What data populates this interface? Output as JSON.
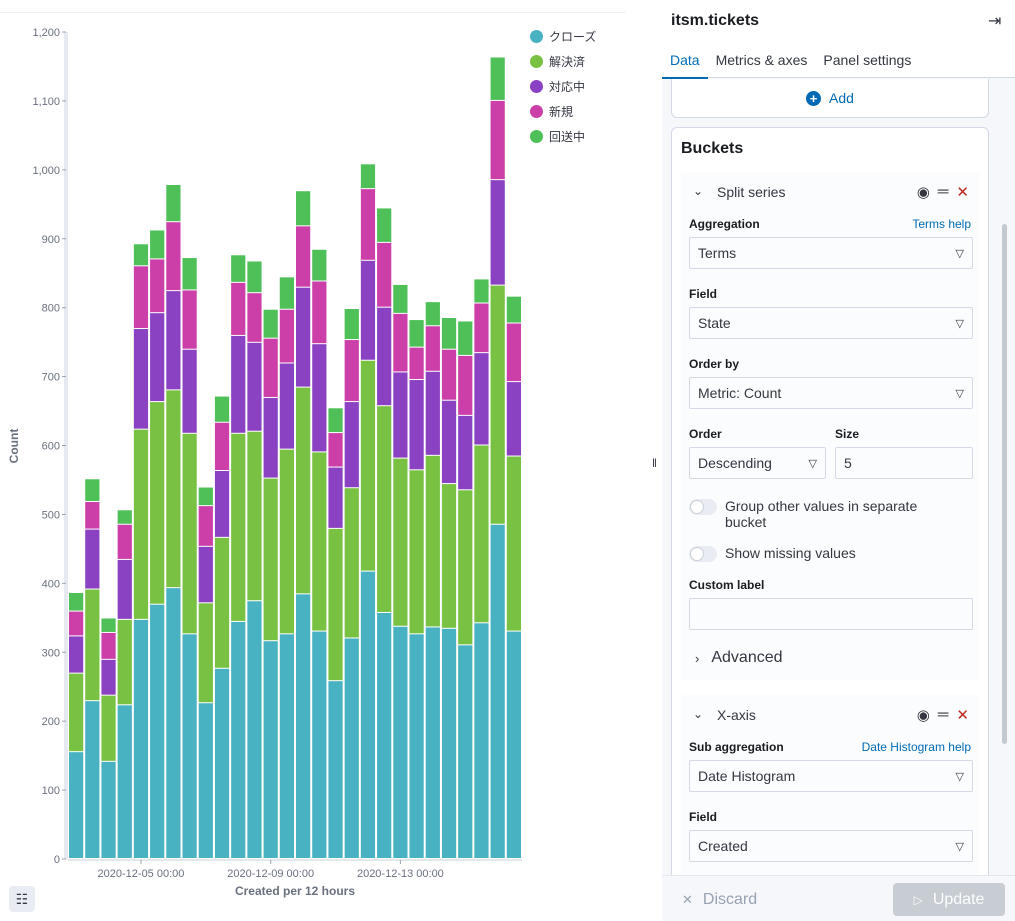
{
  "chart_data": {
    "type": "bar",
    "stacked": true,
    "xlabel": "Created per 12 hours",
    "ylabel": "Count",
    "ylim": [
      0,
      1200
    ],
    "yticks": [
      0,
      100,
      200,
      300,
      400,
      500,
      600,
      700,
      800,
      900,
      1000,
      "1,100",
      "1,200"
    ],
    "x_tick_labels": [
      {
        "index": 4.5,
        "label": "2020-12-05 00:00"
      },
      {
        "index": 12.5,
        "label": "2020-12-09 00:00"
      },
      {
        "index": 20.5,
        "label": "2020-12-13 00:00"
      }
    ],
    "legend_position": "top-right",
    "series": [
      {
        "name": "クローズ",
        "color": "#48b1c2",
        "values": [
          155,
          229,
          141,
          223,
          347,
          369,
          393,
          326,
          226,
          276,
          344,
          374,
          316,
          326,
          384,
          330,
          258,
          320,
          417,
          357,
          337,
          326,
          336,
          334,
          310,
          342,
          485,
          330
        ]
      },
      {
        "name": "解決済",
        "color": "#79c143",
        "values": [
          114,
          162,
          96,
          124,
          276,
          294,
          287,
          291,
          145,
          190,
          273,
          246,
          236,
          268,
          300,
          260,
          221,
          218,
          306,
          300,
          244,
          238,
          249,
          210,
          225,
          258,
          347,
          254
        ]
      },
      {
        "name": "対応中",
        "color": "#8b42c2",
        "values": [
          54,
          87,
          52,
          87,
          146,
          129,
          144,
          122,
          82,
          97,
          142,
          129,
          117,
          125,
          145,
          157,
          89,
          125,
          145,
          143,
          125,
          131,
          122,
          121,
          108,
          134,
          153,
          108
        ]
      },
      {
        "name": "新規",
        "color": "#cc3fa8",
        "values": [
          36,
          40,
          39,
          51,
          91,
          78,
          100,
          86,
          59,
          70,
          77,
          72,
          86,
          78,
          89,
          91,
          50,
          90,
          104,
          94,
          85,
          47,
          66,
          74,
          87,
          72,
          115,
          85
        ]
      },
      {
        "name": "回送中",
        "color": "#4fbf58",
        "values": [
          27,
          33,
          21,
          21,
          32,
          42,
          54,
          47,
          27,
          38,
          40,
          46,
          42,
          47,
          51,
          46,
          36,
          45,
          36,
          50,
          42,
          40,
          35,
          46,
          50,
          35,
          63,
          39
        ]
      }
    ]
  },
  "legend": {
    "items": [
      {
        "label": "クローズ",
        "color": "#48b1c2"
      },
      {
        "label": "解決済",
        "color": "#79c143"
      },
      {
        "label": "対応中",
        "color": "#8b42c2"
      },
      {
        "label": "新規",
        "color": "#cc3fa8"
      },
      {
        "label": "回送中",
        "color": "#4fbf58"
      }
    ]
  },
  "icons": {
    "legend_toggle": "list-icon",
    "resize": "resize-handle-icon"
  },
  "sidebar": {
    "title": "itsm.tickets",
    "tabs": [
      "Data",
      "Metrics & axes",
      "Panel settings"
    ],
    "active_tab": "Data",
    "add_label": "Add",
    "buckets_title": "Buckets",
    "split_series": {
      "name": "Split series",
      "aggregation_label": "Aggregation",
      "aggregation_help": "Terms help",
      "aggregation_value": "Terms",
      "field_label": "Field",
      "field_value": "State",
      "order_by_label": "Order by",
      "order_by_value": "Metric: Count",
      "order_label": "Order",
      "order_value": "Descending",
      "size_label": "Size",
      "size_value": "5",
      "group_other_label": "Group other values in separate bucket",
      "show_missing_label": "Show missing values",
      "custom_label_label": "Custom label",
      "custom_label_value": "",
      "advanced_label": "Advanced"
    },
    "x_axis": {
      "name": "X-axis",
      "sub_agg_label": "Sub aggregation",
      "sub_agg_help": "Date Histogram help",
      "sub_agg_value": "Date Histogram",
      "field_label": "Field",
      "field_value": "Created"
    },
    "footer": {
      "discard_label": "Discard",
      "update_label": "Update"
    }
  }
}
